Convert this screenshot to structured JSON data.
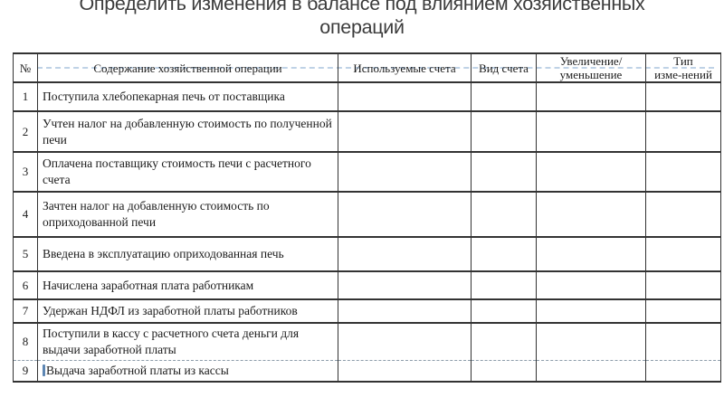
{
  "title": "Определить изменения в балансе под влиянием хозяйственных операций",
  "colors": {
    "header_guide_line": "#bfd2e6",
    "text_cursor": "#5d86b3",
    "table_border": "#333333"
  },
  "table": {
    "caret_row": 9,
    "columns": [
      {
        "id": "num",
        "label": "№"
      },
      {
        "id": "content",
        "label": "Содержание хозяйственной операции"
      },
      {
        "id": "accounts",
        "label": "Используемые счета"
      },
      {
        "id": "account_type",
        "label": "Вид счета"
      },
      {
        "id": "inc_dec",
        "label": "Увеличение/\nуменьшение"
      },
      {
        "id": "change_type",
        "label": "Тип\nизме-нений"
      }
    ],
    "rows": [
      {
        "num": "1",
        "content": "Поступила хлебопекарная печь от поставщика",
        "accounts": "",
        "account_type": "",
        "inc_dec": "",
        "change_type": ""
      },
      {
        "num": "2",
        "content": "Учтен налог на добавленную стоимость по полученной\nпечи",
        "accounts": "",
        "account_type": "",
        "inc_dec": "",
        "change_type": ""
      },
      {
        "num": "3",
        "content": "Оплачена поставщику стоимость печи с расчетного\nсчета",
        "accounts": "",
        "account_type": "",
        "inc_dec": "",
        "change_type": ""
      },
      {
        "num": "4",
        "content": "Зачтен налог на добавленную стоимость по\nоприходованной печи",
        "accounts": "",
        "account_type": "",
        "inc_dec": "",
        "change_type": ""
      },
      {
        "num": "5",
        "content": "Введена в эксплуатацию оприходованная печь",
        "accounts": "",
        "account_type": "",
        "inc_dec": "",
        "change_type": ""
      },
      {
        "num": "6",
        "content": "Начислена заработная плата работникам",
        "accounts": "",
        "account_type": "",
        "inc_dec": "",
        "change_type": ""
      },
      {
        "num": "7",
        "content": "Удержан НДФЛ из заработной платы работников",
        "accounts": "",
        "account_type": "",
        "inc_dec": "",
        "change_type": ""
      },
      {
        "num": "8",
        "content": "Поступили в кассу с расчетного счета деньги для\nвыдачи заработной платы",
        "accounts": "",
        "account_type": "",
        "inc_dec": "",
        "change_type": ""
      },
      {
        "num": "9",
        "content": "Выдача заработной платы из кассы",
        "accounts": "",
        "account_type": "",
        "inc_dec": "",
        "change_type": ""
      }
    ]
  }
}
